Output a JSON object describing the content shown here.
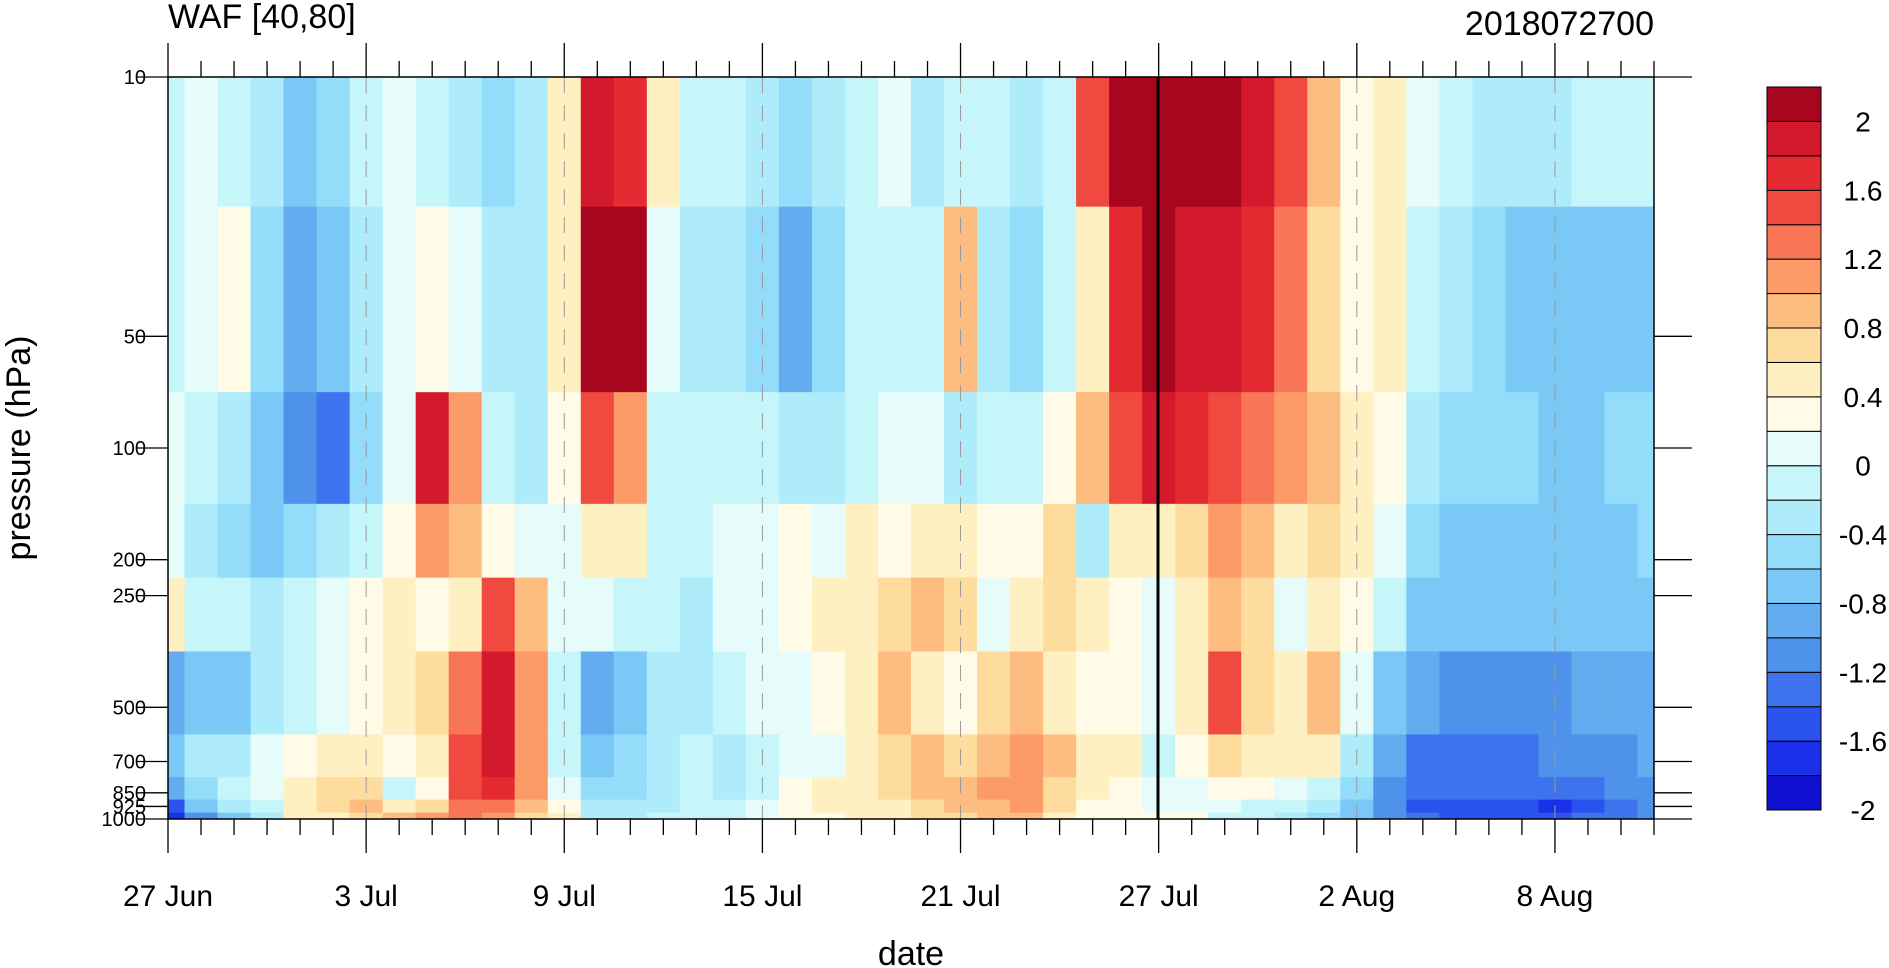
{
  "chart_data": {
    "type": "heatmap",
    "title": "WAF [40,80]",
    "subtitle": "2018072700",
    "xlabel": "date",
    "ylabel": "pressure (hPa)",
    "x_tick_labels": [
      "27 Jun",
      "3 Jul",
      "9 Jul",
      "15 Jul",
      "21 Jul",
      "27 Jul",
      "2 Aug",
      "8 Aug"
    ],
    "y_ticks": [
      10,
      50,
      100,
      200,
      250,
      500,
      700,
      850,
      925,
      1000
    ],
    "y_scale": "log",
    "colorbar_labels": [
      "2",
      "1.6",
      "1.2",
      "0.8",
      "0.4",
      "0",
      "-0.4",
      "-0.8",
      "-1.2",
      "-1.6",
      "-2"
    ],
    "colorbar_levels": [
      -2,
      -1.8,
      -1.6,
      -1.4,
      -1.2,
      -1.0,
      -0.8,
      -0.6,
      -0.4,
      -0.2,
      0,
      0.2,
      0.4,
      0.6,
      0.8,
      1.0,
      1.2,
      1.4,
      1.6,
      1.8,
      2.0
    ],
    "colorbar_colors": [
      "#1010d0",
      "#1a30e8",
      "#2a52ee",
      "#3d74ee",
      "#4f92ec",
      "#63acef",
      "#7ac8f6",
      "#93dcfa",
      "#aeecfb",
      "#c6f6fa",
      "#e6fcfb",
      "#fffbe6",
      "#fef0c0",
      "#fedc9e",
      "#fdbc80",
      "#fc9b68",
      "#f87556",
      "#f04a40",
      "#e52a32",
      "#d21a2c",
      "#a8051f"
    ],
    "grid": false,
    "colorbar_position": "right",
    "current_date_line": "27 Jul",
    "series": [
      {
        "date": "27 Jun",
        "values": [
          -0.3,
          -0.3,
          -0.2,
          -0.2,
          0.2,
          -1.1,
          -0.9,
          -1.2,
          -1.8,
          -2.0
        ]
      },
      {
        "date": "28 Jun",
        "values": [
          -0.2,
          -0.1,
          -0.3,
          -0.6,
          -0.3,
          -0.9,
          -0.6,
          -0.8,
          -1.0,
          -1.4
        ]
      },
      {
        "date": "29 Jun",
        "values": [
          -0.4,
          0.1,
          -0.5,
          -0.8,
          -0.4,
          -1.0,
          -0.5,
          -0.4,
          -0.6,
          -0.9
        ]
      },
      {
        "date": "30 Jun",
        "values": [
          -0.6,
          -0.7,
          -0.9,
          -0.9,
          -0.5,
          -0.5,
          -0.2,
          -0.2,
          -0.4,
          -0.5
        ]
      },
      {
        "date": "1 Jul",
        "values": [
          -1.0,
          -1.1,
          -1.3,
          -0.7,
          -0.3,
          -0.3,
          0.1,
          0.2,
          0.2,
          0.2
        ]
      },
      {
        "date": "2 Jul",
        "values": [
          -0.7,
          -0.9,
          -1.6,
          -0.5,
          -0.2,
          -0.1,
          0.3,
          0.4,
          0.4,
          0.3
        ]
      },
      {
        "date": "3 Jul",
        "values": [
          -0.4,
          -0.5,
          -0.8,
          -0.3,
          0.0,
          0.1,
          0.2,
          0.5,
          0.6,
          0.4
        ]
      },
      {
        "date": "4 Jul",
        "values": [
          -0.2,
          -0.1,
          -0.2,
          0.0,
          0.2,
          0.3,
          0.0,
          -0.3,
          0.3,
          0.6
        ]
      },
      {
        "date": "5 Jul",
        "values": [
          -0.3,
          0.1,
          1.6,
          0.8,
          0.0,
          0.5,
          0.2,
          0.0,
          0.5,
          0.9
        ]
      },
      {
        "date": "6 Jul",
        "values": [
          -0.5,
          -0.2,
          0.9,
          0.6,
          0.3,
          1.1,
          1.2,
          1.2,
          1.1,
          1.0
        ]
      },
      {
        "date": "7 Jul",
        "values": [
          -0.7,
          -0.6,
          -0.3,
          0.0,
          1.3,
          1.7,
          1.6,
          1.4,
          1.1,
          0.8
        ]
      },
      {
        "date": "8 Jul",
        "values": [
          -0.5,
          -0.5,
          -0.5,
          -0.1,
          0.7,
          0.9,
          0.9,
          0.8,
          0.7,
          0.5
        ]
      },
      {
        "date": "9 Jul",
        "values": [
          0.3,
          0.2,
          0.0,
          -0.1,
          -0.2,
          -0.3,
          -0.3,
          -0.2,
          0.0,
          0.2
        ]
      },
      {
        "date": "10 Jul",
        "values": [
          1.6,
          2.0,
          1.2,
          0.3,
          -0.2,
          -1.2,
          -1.0,
          -0.8,
          -0.6,
          -0.5
        ]
      },
      {
        "date": "11 Jul",
        "values": [
          1.4,
          1.9,
          0.9,
          0.2,
          -0.3,
          -0.9,
          -0.8,
          -0.7,
          -0.6,
          -0.5
        ]
      },
      {
        "date": "12 Jul",
        "values": [
          0.2,
          -0.2,
          -0.3,
          -0.4,
          -0.3,
          -0.6,
          -0.6,
          -0.6,
          -0.5,
          -0.4
        ]
      },
      {
        "date": "13 Jul",
        "values": [
          -0.3,
          -0.5,
          -0.4,
          -0.3,
          -0.5,
          -0.5,
          -0.4,
          -0.4,
          -0.3,
          -0.3
        ]
      },
      {
        "date": "14 Jul",
        "values": [
          -0.4,
          -0.6,
          -0.4,
          -0.2,
          -0.2,
          -0.4,
          -0.5,
          -0.5,
          -0.4,
          -0.3
        ]
      },
      {
        "date": "15 Jul",
        "values": [
          -0.6,
          -0.8,
          -0.3,
          -0.1,
          -0.1,
          -0.2,
          -0.3,
          -0.3,
          -0.2,
          -0.1
        ]
      },
      {
        "date": "16 Jul",
        "values": [
          -0.8,
          -1.1,
          -0.5,
          0.0,
          0.1,
          -0.1,
          -0.2,
          0.0,
          0.1,
          0.1
        ]
      },
      {
        "date": "17 Jul",
        "values": [
          -0.6,
          -0.8,
          -0.6,
          -0.1,
          0.2,
          0.0,
          -0.1,
          0.2,
          0.2,
          0.1
        ]
      },
      {
        "date": "18 Jul",
        "values": [
          -0.3,
          -0.4,
          -0.3,
          0.2,
          0.3,
          0.2,
          0.2,
          0.3,
          0.3,
          0.2
        ]
      },
      {
        "date": "19 Jul",
        "values": [
          -0.2,
          -0.3,
          -0.1,
          0.1,
          0.5,
          0.6,
          0.5,
          0.4,
          0.3,
          0.2
        ]
      },
      {
        "date": "20 Jul",
        "values": [
          -0.5,
          -0.4,
          -0.2,
          0.2,
          0.6,
          0.2,
          0.6,
          0.6,
          0.5,
          0.4
        ]
      },
      {
        "date": "21 Jul",
        "values": [
          -0.3,
          0.6,
          -0.5,
          0.2,
          0.4,
          0.0,
          0.4,
          0.6,
          0.6,
          0.5
        ]
      },
      {
        "date": "22 Jul",
        "values": [
          -0.4,
          -0.5,
          -0.4,
          0.0,
          -0.1,
          0.4,
          0.6,
          0.8,
          0.7,
          0.6
        ]
      },
      {
        "date": "23 Jul",
        "values": [
          -0.6,
          -0.8,
          -0.3,
          0.1,
          0.2,
          0.6,
          0.8,
          0.9,
          0.8,
          0.6
        ]
      },
      {
        "date": "24 Jul",
        "values": [
          -0.3,
          -0.4,
          0.1,
          0.4,
          0.4,
          0.2,
          0.6,
          0.5,
          0.4,
          0.3
        ]
      },
      {
        "date": "25 Jul",
        "values": [
          1.2,
          0.3,
          0.6,
          -0.5,
          0.2,
          0.1,
          0.3,
          0.2,
          0.1,
          0.1
        ]
      },
      {
        "date": "26 Jul",
        "values": [
          2.0,
          1.4,
          1.2,
          0.3,
          0.1,
          0.1,
          0.2,
          0.1,
          0.0,
          0.0
        ]
      },
      {
        "date": "27 Jul",
        "values": [
          2.0,
          1.8,
          1.6,
          0.2,
          -0.1,
          -0.2,
          -0.3,
          -0.1,
          -0.1,
          0.0
        ]
      },
      {
        "date": "28 Jul",
        "values": [
          2.0,
          1.7,
          1.4,
          0.4,
          0.2,
          0.3,
          0.1,
          -0.2,
          -0.1,
          0.0
        ]
      },
      {
        "date": "29 Jul",
        "values": [
          1.8,
          1.6,
          1.3,
          0.8,
          0.6,
          1.2,
          0.5,
          0.0,
          -0.2,
          -0.3
        ]
      },
      {
        "date": "30 Jul",
        "values": [
          1.6,
          1.4,
          1.0,
          0.6,
          0.4,
          0.4,
          0.3,
          0.0,
          -0.3,
          -0.4
        ]
      },
      {
        "date": "31 Jul",
        "values": [
          1.2,
          1.0,
          0.8,
          0.2,
          -0.2,
          0.3,
          0.2,
          -0.2,
          -0.4,
          -0.5
        ]
      },
      {
        "date": "1 Aug",
        "values": [
          0.6,
          0.5,
          0.6,
          0.4,
          0.2,
          0.6,
          0.2,
          -0.4,
          -0.6,
          -0.7
        ]
      },
      {
        "date": "2 Aug",
        "values": [
          0.1,
          0.0,
          0.2,
          0.2,
          0.0,
          -0.2,
          -0.6,
          -0.8,
          -0.9,
          -1.0
        ]
      },
      {
        "date": "3 Aug",
        "values": [
          0.3,
          0.2,
          0.1,
          -0.1,
          -0.4,
          -0.9,
          -1.2,
          -1.3,
          -1.4,
          -1.4
        ]
      },
      {
        "date": "4 Aug",
        "values": [
          -0.2,
          -0.3,
          -0.5,
          -0.8,
          -0.9,
          -1.2,
          -1.5,
          -1.6,
          -1.7,
          -1.6
        ]
      },
      {
        "date": "5 Aug",
        "values": [
          -0.4,
          -0.5,
          -0.7,
          -0.9,
          -1.0,
          -1.3,
          -1.5,
          -1.6,
          -1.7,
          -1.7
        ]
      },
      {
        "date": "6 Aug",
        "values": [
          -0.5,
          -0.7,
          -0.8,
          -0.9,
          -1.0,
          -1.3,
          -1.5,
          -1.6,
          -1.8,
          -1.7
        ]
      },
      {
        "date": "7 Aug",
        "values": [
          -0.6,
          -0.9,
          -0.8,
          -0.9,
          -1.0,
          -1.3,
          -1.5,
          -1.6,
          -1.8,
          -1.7
        ]
      },
      {
        "date": "8 Aug",
        "values": [
          -0.5,
          -1.0,
          -0.9,
          -1.0,
          -1.0,
          -1.3,
          -1.4,
          -1.6,
          -1.9,
          -1.7
        ]
      },
      {
        "date": "9 Aug",
        "values": [
          -0.4,
          -1.0,
          -0.9,
          -1.0,
          -1.0,
          -1.2,
          -1.4,
          -1.5,
          -1.7,
          -1.6
        ]
      },
      {
        "date": "10 Aug",
        "values": [
          -0.3,
          -1.0,
          -0.8,
          -0.9,
          -0.9,
          -1.2,
          -1.3,
          -1.4,
          -1.5,
          -1.5
        ]
      },
      {
        "date": "11 Aug",
        "values": [
          -0.3,
          -0.9,
          -0.7,
          -0.8,
          -0.9,
          -1.1,
          -1.2,
          -1.3,
          -1.4,
          -1.4
        ]
      }
    ]
  }
}
